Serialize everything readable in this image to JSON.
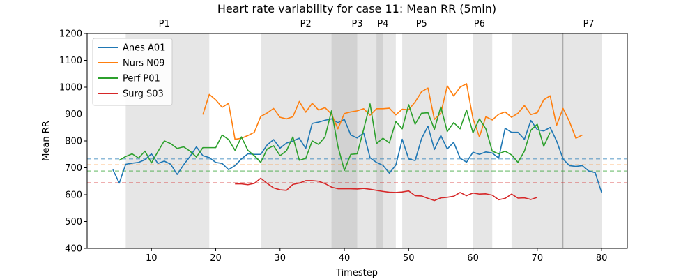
{
  "chart_data": {
    "type": "line",
    "title": "Heart rate variability for case 11: Mean RR (5min)",
    "xlabel": "Timestep",
    "ylabel": "Mean RR",
    "xlim": [
      0,
      84
    ],
    "ylim": [
      400,
      1200
    ],
    "xticks": [
      10,
      20,
      30,
      40,
      50,
      60,
      70,
      80
    ],
    "yticks": [
      400,
      500,
      600,
      700,
      800,
      900,
      1000,
      1100,
      1200
    ],
    "grid": false,
    "legend_position": "upper-left",
    "phases": [
      {
        "label": "P1",
        "start": 6,
        "end": 19
      },
      {
        "label": "P2",
        "start": 27,
        "end": 42
      },
      {
        "label": "P3",
        "start": 38,
        "end": 48
      },
      {
        "label": "P4",
        "start": 45,
        "end": 46
      },
      {
        "label": "P5",
        "start": 49,
        "end": 56
      },
      {
        "label": "P6",
        "start": 60,
        "end": 63
      },
      {
        "label": "P7",
        "start": 66,
        "end": 80
      }
    ],
    "phase_label_x": [
      12,
      34,
      42,
      46,
      52,
      61,
      78
    ],
    "boundary_line_x": 74,
    "series": [
      {
        "name": "Anes A01",
        "color": "#1f77b4",
        "baseline": 733,
        "x": [
          4,
          5,
          6,
          7,
          8,
          9,
          10,
          11,
          12,
          13,
          14,
          15,
          16,
          17,
          18,
          19,
          20,
          21,
          22,
          23,
          24,
          25,
          26,
          27,
          28,
          29,
          30,
          31,
          32,
          33,
          34,
          35,
          36,
          37,
          38,
          39,
          40,
          41,
          42,
          43,
          44,
          45,
          46,
          47,
          48,
          49,
          50,
          51,
          52,
          53,
          54,
          55,
          56,
          57,
          58,
          59,
          60,
          61,
          62,
          63,
          64,
          65,
          66,
          67,
          68,
          69,
          70,
          71,
          72,
          73,
          74,
          75,
          76,
          77,
          78,
          79,
          80
        ],
        "y": [
          693,
          643,
          713,
          717,
          720,
          730,
          752,
          716,
          725,
          713,
          675,
          711,
          742,
          778,
          745,
          738,
          720,
          716,
          693,
          708,
          733,
          752,
          750,
          750,
          785,
          805,
          773,
          792,
          800,
          810,
          772,
          865,
          870,
          877,
          882,
          868,
          880,
          822,
          811,
          830,
          737,
          720,
          709,
          680,
          710,
          806,
          733,
          727,
          808,
          855,
          768,
          820,
          770,
          795,
          736,
          721,
          758,
          750,
          759,
          755,
          736,
          847,
          832,
          832,
          806,
          876,
          842,
          837,
          850,
          800,
          733,
          708,
          705,
          708,
          688,
          682,
          608
        ]
      },
      {
        "name": "Nurs N09",
        "color": "#ff7f0e",
        "baseline": 711,
        "x": [
          18,
          19,
          20,
          21,
          22,
          23,
          24,
          25,
          26,
          27,
          28,
          29,
          30,
          31,
          32,
          33,
          34,
          35,
          36,
          37,
          38,
          39,
          40,
          41,
          42,
          43,
          44,
          45,
          46,
          47,
          48,
          49,
          50,
          51,
          52,
          53,
          54,
          55,
          56,
          57,
          58,
          59,
          60,
          61,
          62,
          63,
          64,
          65,
          66,
          67,
          68,
          69,
          70,
          71,
          72,
          73,
          74,
          75,
          76,
          77
        ],
        "y": [
          898,
          973,
          953,
          925,
          940,
          806,
          810,
          820,
          832,
          891,
          904,
          921,
          888,
          882,
          890,
          947,
          907,
          940,
          915,
          924,
          900,
          845,
          902,
          908,
          912,
          920,
          896,
          920,
          920,
          922,
          897,
          918,
          916,
          945,
          983,
          997,
          880,
          903,
          1005,
          967,
          1000,
          1013,
          883,
          815,
          890,
          878,
          899,
          908,
          888,
          903,
          932,
          898,
          905,
          953,
          968,
          858,
          921,
          872,
          810,
          822
        ]
      },
      {
        "name": "Perf P01",
        "color": "#2ca02c",
        "baseline": 688,
        "x": [
          5,
          6,
          7,
          8,
          9,
          10,
          11,
          12,
          13,
          14,
          15,
          16,
          17,
          18,
          19,
          20,
          21,
          22,
          23,
          24,
          25,
          26,
          27,
          28,
          29,
          30,
          31,
          32,
          33,
          34,
          35,
          36,
          37,
          38,
          39,
          40,
          41,
          42,
          43,
          44,
          45,
          46,
          47,
          48,
          49,
          50,
          51,
          52,
          53,
          54,
          55,
          56,
          57,
          58,
          59,
          60,
          61,
          62,
          63,
          64,
          65,
          66,
          67,
          68,
          69,
          70,
          71,
          72
        ],
        "y": [
          728,
          742,
          752,
          736,
          762,
          718,
          760,
          800,
          790,
          772,
          778,
          762,
          740,
          775,
          775,
          775,
          822,
          805,
          765,
          815,
          765,
          745,
          720,
          770,
          782,
          745,
          763,
          815,
          728,
          735,
          800,
          787,
          815,
          912,
          780,
          690,
          750,
          752,
          843,
          938,
          790,
          810,
          793,
          872,
          845,
          935,
          862,
          903,
          905,
          843,
          927,
          835,
          868,
          845,
          915,
          830,
          882,
          845,
          762,
          752,
          762,
          748,
          720,
          762,
          840,
          862,
          780,
          832
        ]
      },
      {
        "name": "Surg S03",
        "color": "#d62728",
        "baseline": 644,
        "x": [
          23,
          24,
          25,
          26,
          27,
          28,
          29,
          30,
          31,
          32,
          33,
          34,
          35,
          36,
          37,
          38,
          39,
          40,
          41,
          42,
          43,
          44,
          45,
          46,
          47,
          48,
          49,
          50,
          51,
          52,
          53,
          54,
          55,
          56,
          57,
          58,
          59,
          60,
          61,
          62,
          63,
          64,
          65,
          66,
          67,
          68,
          69,
          70
        ],
        "y": [
          640,
          640,
          637,
          642,
          661,
          642,
          625,
          618,
          616,
          638,
          643,
          652,
          652,
          650,
          641,
          628,
          622,
          622,
          622,
          621,
          623,
          620,
          616,
          612,
          609,
          608,
          610,
          614,
          596,
          595,
          586,
          578,
          588,
          590,
          594,
          608,
          596,
          606,
          602,
          603,
          598,
          581,
          586,
          602,
          587,
          588,
          582,
          590
        ]
      }
    ]
  }
}
